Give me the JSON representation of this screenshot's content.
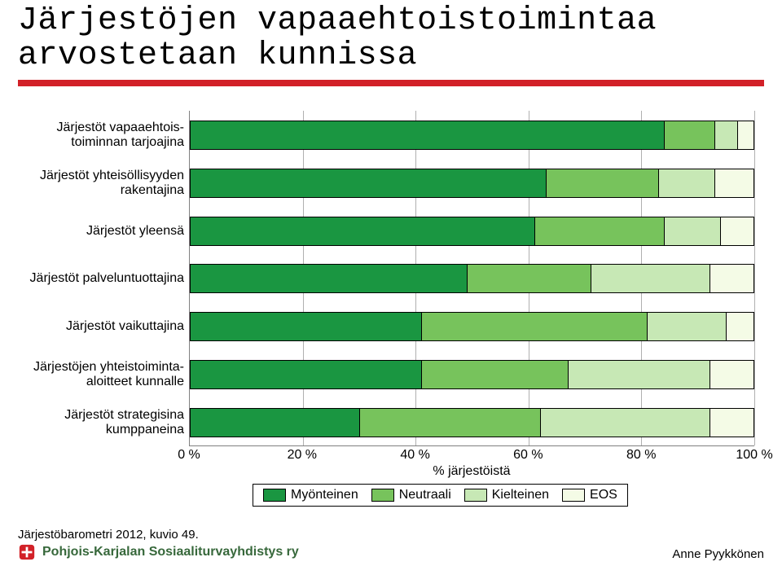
{
  "title": {
    "line1": "Järjestöjen vapaaehtoistoimintaa",
    "line2": "arvostetaan kunnissa",
    "fontsize": 40,
    "color": "#000000"
  },
  "rule_color": "#d22128",
  "chart": {
    "type": "stacked-horizontal-bar",
    "background_color": "#ffffff",
    "xlim": [
      0,
      100
    ],
    "xtick_step": 20,
    "xticks": [
      "0 %",
      "20 %",
      "40 %",
      "60 %",
      "80 %",
      "100 %"
    ],
    "xlabel": "% järjestöistä",
    "series": [
      "Myönteinen",
      "Neutraali",
      "Kielteinen",
      "EOS"
    ],
    "series_colors": [
      "#1a9641",
      "#77c35c",
      "#c7e8b5",
      "#f4fbe6"
    ],
    "bar_border_color": "#000000",
    "grid_color": "#b0b0b0",
    "label_fontsize": 16,
    "tick_fontsize": 16,
    "categories": [
      {
        "label": "Järjestöt vapaaehtois-\ntoiminnan tarjoajina",
        "values": [
          84,
          9,
          4,
          3
        ]
      },
      {
        "label": "Järjestöt yhteisöllisyyden\nrakentajina",
        "values": [
          63,
          20,
          10,
          7
        ]
      },
      {
        "label": "Järjestöt yleensä",
        "values": [
          61,
          23,
          10,
          6
        ]
      },
      {
        "label": "Järjestöt palveluntuottajina",
        "values": [
          49,
          22,
          21,
          8
        ]
      },
      {
        "label": "Järjestöt vaikuttajina",
        "values": [
          41,
          40,
          14,
          5
        ]
      },
      {
        "label": "Järjestöjen yhteistoiminta-\naloitteet kunnalle",
        "values": [
          41,
          26,
          25,
          8
        ]
      },
      {
        "label": "Järjestöt strategisina\nkumppaneina",
        "values": [
          30,
          32,
          30,
          8
        ]
      }
    ]
  },
  "legend": {
    "items": [
      "Myönteinen",
      "Neutraali",
      "Kielteinen",
      "EOS"
    ]
  },
  "footer": {
    "source": "Järjestöbarometri 2012, kuvio 49.",
    "org": "Pohjois-Karjalan Sosiaaliturvayhdistys ry",
    "author": "Anne Pyykkönen",
    "org_color": "#37683b",
    "logo_red": "#d22128"
  }
}
